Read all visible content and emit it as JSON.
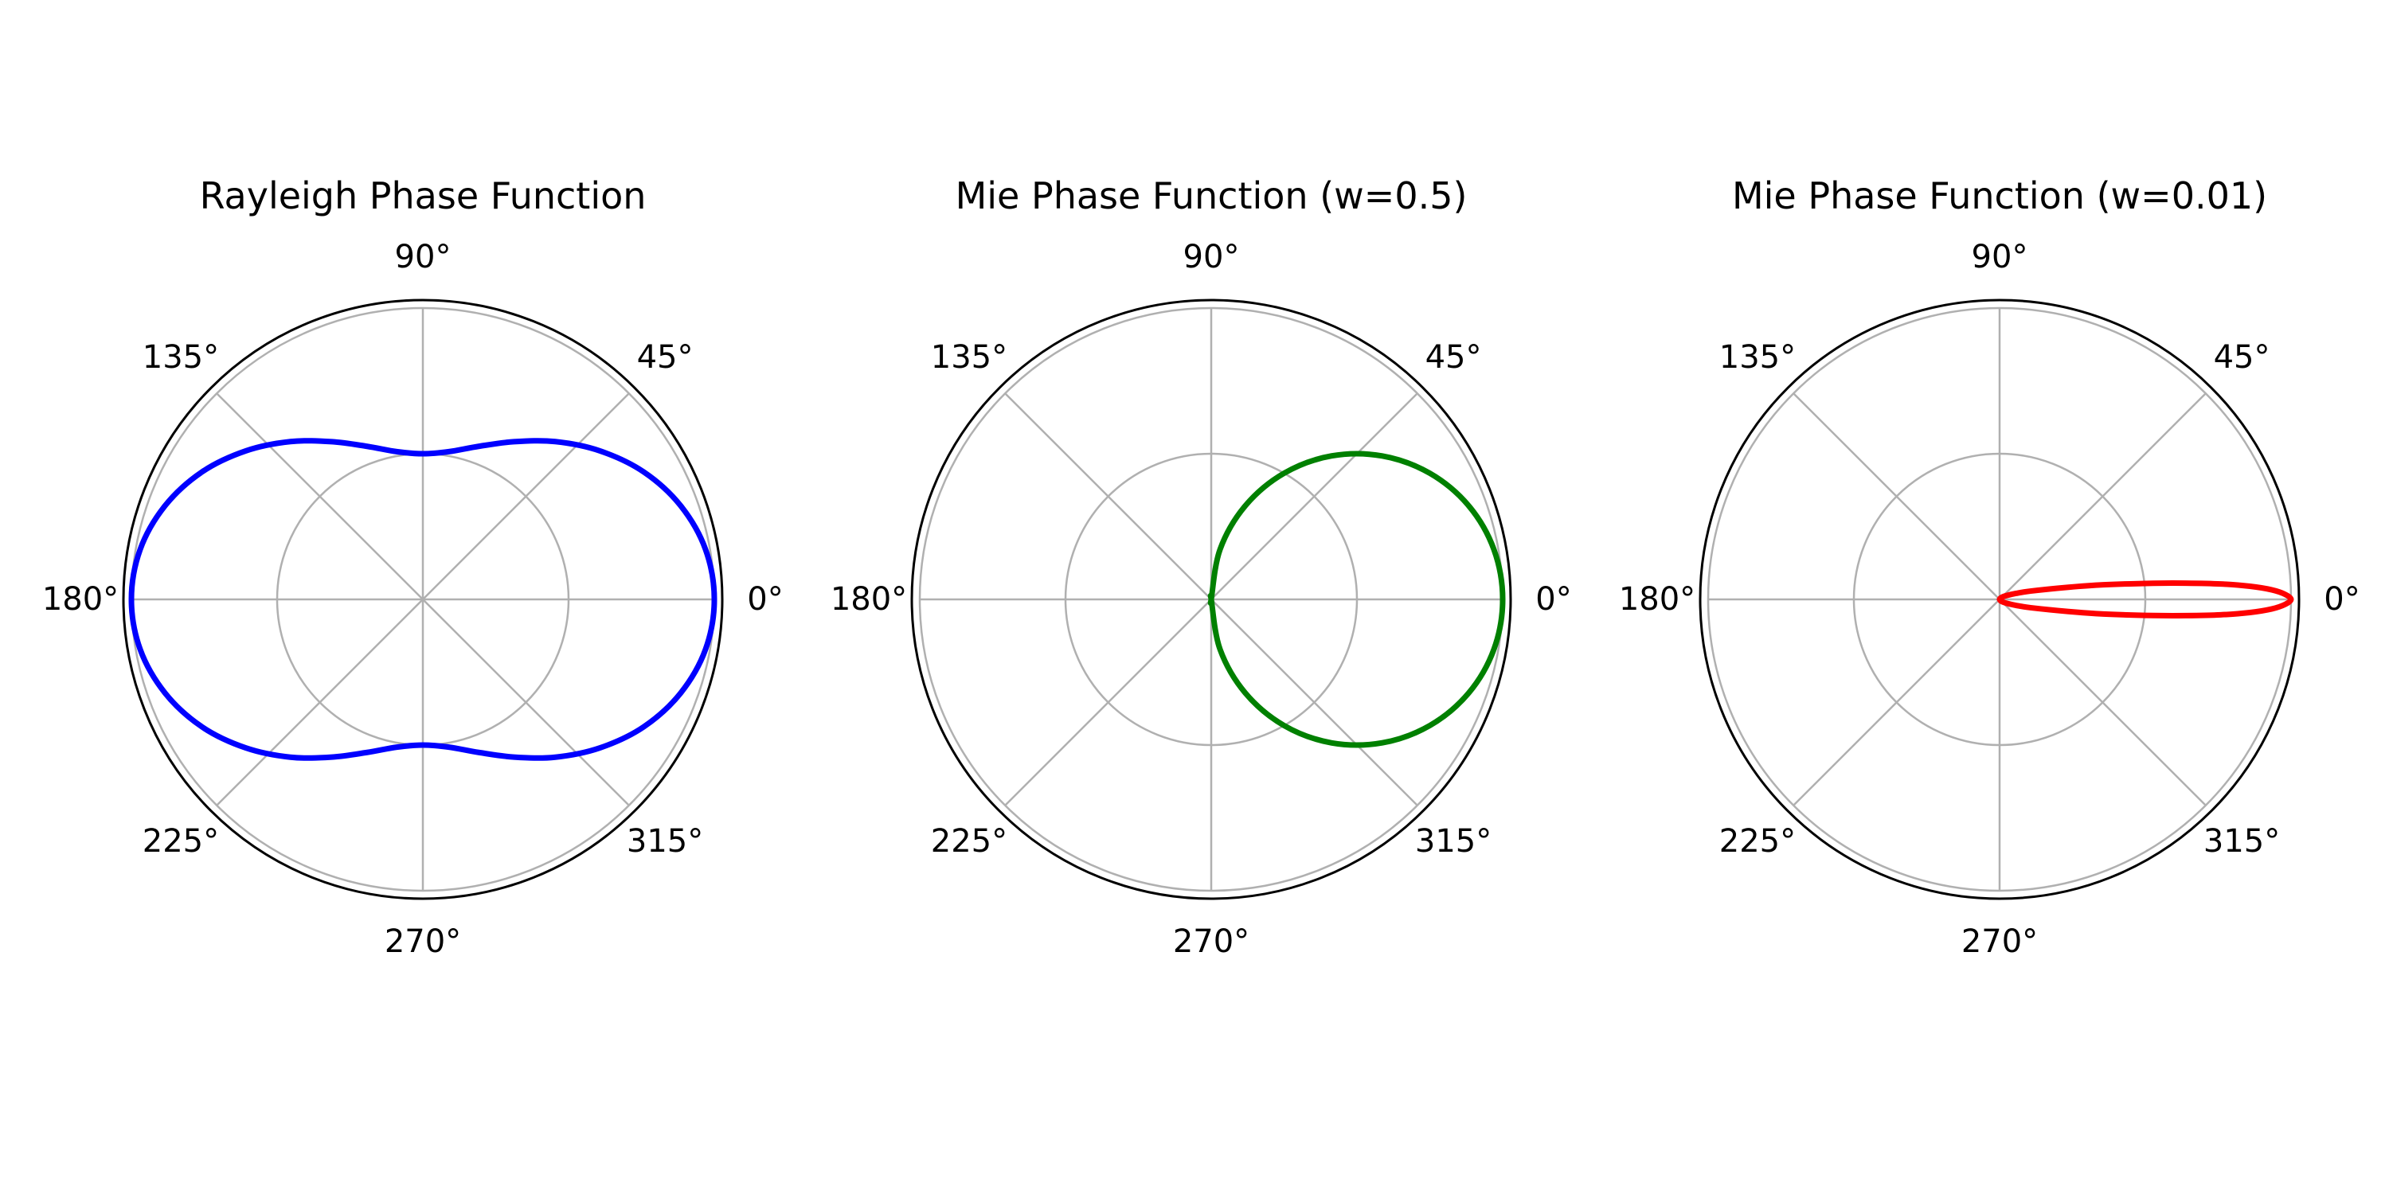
{
  "chart_data": [
    {
      "type": "polar-line",
      "title": "Rayleigh Phase Function",
      "angle_unit": "degrees",
      "angle_tick_labels": [
        "0°",
        "45°",
        "90°",
        "135°",
        "180°",
        "225°",
        "270°",
        "315°"
      ],
      "radial_grid": [
        0.5,
        1.0
      ],
      "rlim": [
        0,
        1.0
      ],
      "grid": true,
      "series": [
        {
          "color": "#0000ff",
          "theta_deg": [
            0,
            10,
            20,
            30,
            40,
            50,
            60,
            70,
            80,
            90,
            100,
            110,
            120,
            130,
            140,
            150,
            160,
            170,
            180,
            190,
            200,
            210,
            220,
            230,
            240,
            250,
            260,
            270,
            280,
            290,
            300,
            310,
            320,
            330,
            340,
            350,
            360
          ],
          "r": [
            1.0,
            0.985,
            0.941,
            0.875,
            0.793,
            0.707,
            0.625,
            0.559,
            0.515,
            0.5,
            0.515,
            0.559,
            0.625,
            0.707,
            0.793,
            0.875,
            0.941,
            0.985,
            1.0,
            0.985,
            0.941,
            0.875,
            0.793,
            0.707,
            0.625,
            0.559,
            0.515,
            0.5,
            0.515,
            0.559,
            0.625,
            0.707,
            0.793,
            0.875,
            0.941,
            0.985,
            1.0
          ]
        }
      ]
    },
    {
      "type": "polar-line",
      "title": "Mie Phase Function (w=0.5)",
      "angle_unit": "degrees",
      "angle_tick_labels": [
        "0°",
        "45°",
        "90°",
        "135°",
        "180°",
        "225°",
        "270°",
        "315°"
      ],
      "radial_grid": [
        0.5,
        1.0
      ],
      "rlim": [
        0,
        1.0
      ],
      "grid": true,
      "series": [
        {
          "color": "#008000",
          "theta_deg": [
            0,
            10,
            20,
            30,
            40,
            50,
            60,
            70,
            80,
            90,
            100,
            110,
            120,
            130,
            140,
            150,
            160,
            170,
            180,
            190,
            200,
            210,
            220,
            230,
            240,
            250,
            260,
            270,
            280,
            290,
            300,
            310,
            320,
            330,
            340,
            350,
            360
          ],
          "r": [
            1.0,
            0.985,
            0.94,
            0.866,
            0.766,
            0.643,
            0.5,
            0.342,
            0.174,
            0.0,
            0.0,
            0.0,
            0.0,
            0.0,
            0.0,
            0.0,
            0.0,
            0.0,
            0.0,
            0.0,
            0.0,
            0.0,
            0.0,
            0.0,
            0.0,
            0.0,
            0.0,
            0.0,
            0.174,
            0.342,
            0.5,
            0.643,
            0.766,
            0.866,
            0.94,
            0.985,
            1.0
          ]
        }
      ]
    },
    {
      "type": "polar-line",
      "title": "Mie Phase Function (w=0.01)",
      "angle_unit": "degrees",
      "angle_tick_labels": [
        "0°",
        "45°",
        "90°",
        "135°",
        "180°",
        "225°",
        "270°",
        "315°"
      ],
      "radial_grid": [
        0.5,
        1.0
      ],
      "rlim": [
        0,
        1.0
      ],
      "grid": true,
      "series": [
        {
          "color": "#ff0000",
          "theta_deg": [
            0,
            1,
            2,
            3,
            4,
            5,
            6,
            8,
            10,
            15,
            20,
            30,
            45,
            60,
            90,
            180,
            270,
            300,
            315,
            330,
            340,
            345,
            350,
            352,
            354,
            355,
            356,
            357,
            358,
            359,
            360
          ],
          "r": [
            1.0,
            0.98,
            0.935,
            0.86,
            0.76,
            0.64,
            0.53,
            0.36,
            0.24,
            0.11,
            0.06,
            0.025,
            0.01,
            0.004,
            0.0,
            0.0,
            0.0,
            0.004,
            0.01,
            0.025,
            0.06,
            0.11,
            0.24,
            0.36,
            0.53,
            0.64,
            0.76,
            0.86,
            0.935,
            0.98,
            1.0
          ]
        }
      ]
    }
  ]
}
